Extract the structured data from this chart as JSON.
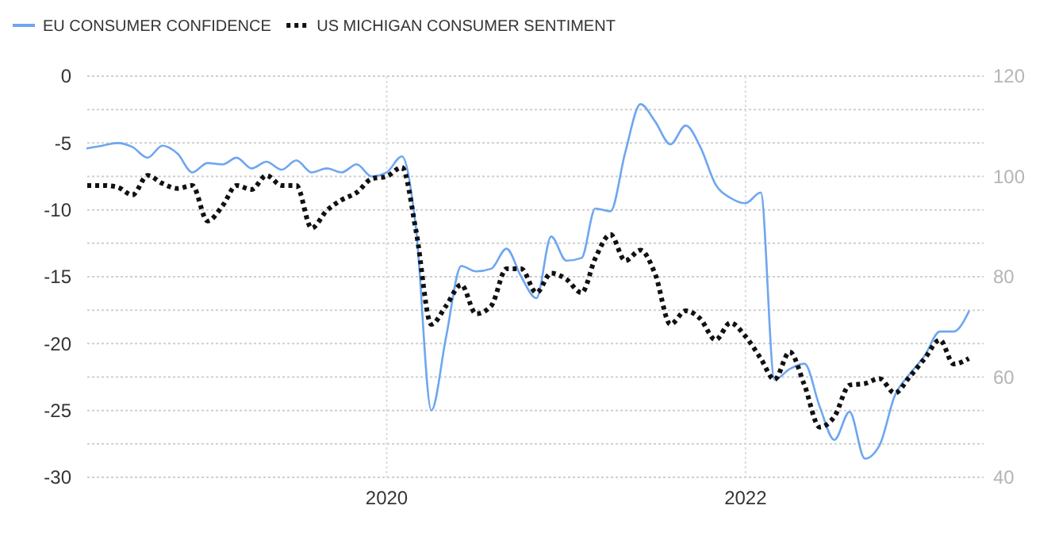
{
  "chart_data": {
    "type": "line",
    "x": [
      "2018-05",
      "2018-06",
      "2018-07",
      "2018-08",
      "2018-09",
      "2018-10",
      "2018-11",
      "2018-12",
      "2019-01",
      "2019-02",
      "2019-03",
      "2019-04",
      "2019-05",
      "2019-06",
      "2019-07",
      "2019-08",
      "2019-09",
      "2019-10",
      "2019-11",
      "2019-12",
      "2020-01",
      "2020-02",
      "2020-03",
      "2020-04",
      "2020-05",
      "2020-06",
      "2020-07",
      "2020-08",
      "2020-09",
      "2020-10",
      "2020-11",
      "2020-12",
      "2021-01",
      "2021-02",
      "2021-03",
      "2021-04",
      "2021-05",
      "2021-06",
      "2021-07",
      "2021-08",
      "2021-09",
      "2021-10",
      "2021-11",
      "2021-12",
      "2022-01",
      "2022-02",
      "2022-03",
      "2022-04",
      "2022-05",
      "2022-06",
      "2022-07",
      "2022-08",
      "2022-09",
      "2022-10",
      "2022-11",
      "2022-12",
      "2023-01",
      "2023-02",
      "2023-03",
      "2023-04"
    ],
    "series": [
      {
        "name": "EU CONSUMER CONFIDENCE",
        "color": "#6ea6f0",
        "line_style": "solid",
        "values": [
          -5.4,
          -5.2,
          -5.0,
          -5.3,
          -6.1,
          -5.2,
          -5.8,
          -7.2,
          -6.5,
          -6.6,
          -6.1,
          -6.9,
          -6.4,
          -7.0,
          -6.3,
          -7.2,
          -6.9,
          -7.2,
          -6.6,
          -7.5,
          -7.2,
          -6.0,
          -11.5,
          -25.0,
          -19.5,
          -14.2,
          -14.6,
          -14.4,
          -12.9,
          -15.0,
          -16.6,
          -12.0,
          -13.8,
          -13.6,
          -9.9,
          -10.1,
          -5.7,
          -2.1,
          -3.4,
          -5.1,
          -3.7,
          -5.3,
          -8.1,
          -9.1,
          -9.5,
          -8.7,
          -22.7,
          -21.9,
          -21.5,
          -24.7,
          -27.2,
          -25.1,
          -28.6,
          -27.6,
          -23.9,
          -22.3,
          -20.9,
          -19.1,
          -19.1,
          -17.6
        ]
      },
      {
        "name": "US MICHIGAN CONSUMER SENTIMENT",
        "color": "#111111",
        "line_style": "dotted",
        "axis": "y2",
        "values": [
          98.2,
          98.2,
          97.9,
          96.3,
          100.2,
          98.6,
          97.6,
          98.2,
          91.1,
          94.2,
          98.2,
          97.4,
          100.2,
          98.2,
          98.2,
          89.7,
          93.2,
          95.3,
          96.8,
          99.5,
          100.0,
          101.8,
          89.0,
          70.5,
          74.2,
          78.4,
          72.6,
          74.2,
          81.6,
          81.6,
          76.8,
          80.7,
          79.5,
          76.8,
          83.7,
          88.4,
          83.2,
          85.3,
          80.5,
          70.5,
          73.2,
          71.6,
          67.4,
          70.8,
          68.1,
          63.7,
          59.5,
          65.0,
          58.4,
          50.0,
          52.1,
          58.4,
          58.7,
          59.7,
          56.8,
          60.0,
          63.7,
          67.4,
          62.6,
          63.7
        ]
      }
    ],
    "xlim": [
      "2018-05",
      "2023-05"
    ],
    "xticks": [
      {
        "value": "2020-01",
        "label": "2020"
      },
      {
        "value": "2022-01",
        "label": "2022"
      }
    ],
    "ylim": [
      -30,
      0
    ],
    "yticks": [
      -30,
      {
        "value": -27.5,
        "label": null
      },
      -25,
      {
        "value": -22.5,
        "label": null
      },
      -20,
      {
        "value": -17.5,
        "label": null
      },
      -15,
      {
        "value": -12.5,
        "label": null
      },
      -10,
      {
        "value": -7.5,
        "label": null
      },
      -5,
      {
        "value": -2.5,
        "label": null
      },
      0
    ],
    "y2lim": [
      40,
      120
    ],
    "y2ticks": [
      40,
      60,
      80,
      100,
      120
    ],
    "grid": true,
    "legend": "top left"
  }
}
